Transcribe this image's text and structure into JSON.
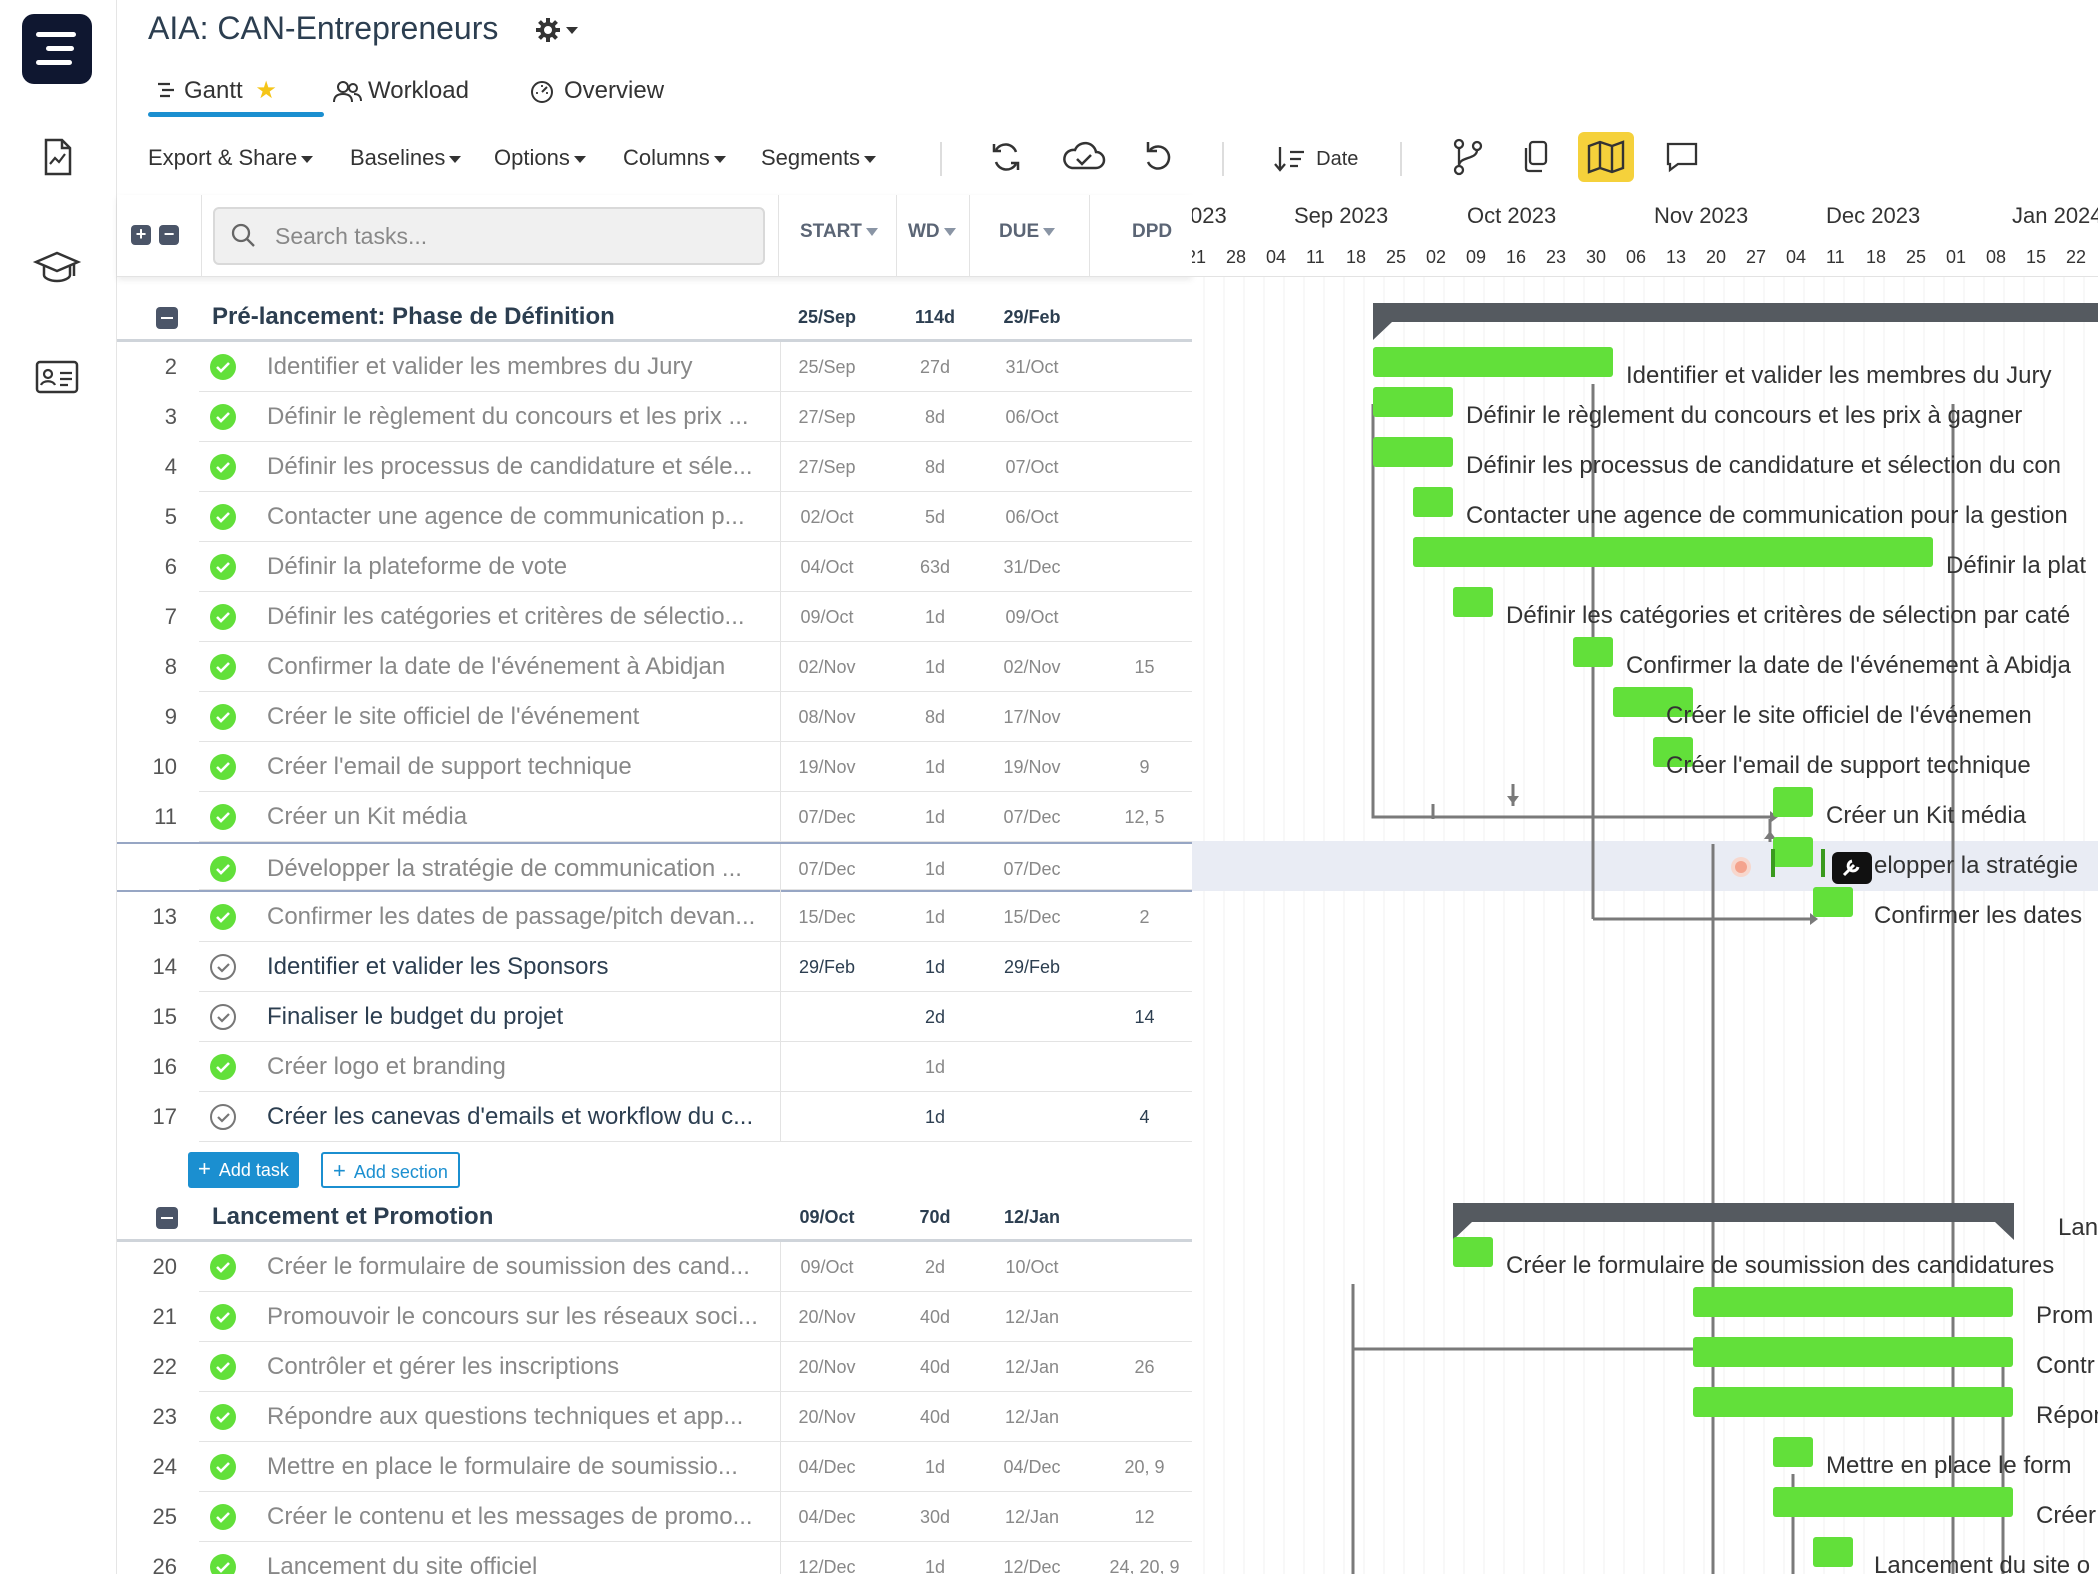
{
  "project": {
    "title": "AIA: CAN-Entrepreneurs"
  },
  "tabs": [
    {
      "label": "Gantt",
      "active": true,
      "starred": true
    },
    {
      "label": "Workload"
    },
    {
      "label": "Overview"
    }
  ],
  "toolbar": {
    "export_share": "Export & Share",
    "baselines": "Baselines",
    "options": "Options",
    "columns": "Columns",
    "segments": "Segments",
    "sort_label": "Date"
  },
  "grid": {
    "search_placeholder": "Search tasks...",
    "col_start": "START",
    "col_wd": "WD",
    "col_due": "DUE",
    "col_dpd": "DPD"
  },
  "timeline": {
    "months": [
      "023",
      "Sep 2023",
      "Oct 2023",
      "Nov 2023",
      "Dec 2023",
      "Jan 2024"
    ],
    "weeks": [
      "21",
      "28",
      "04",
      "11",
      "18",
      "25",
      "02",
      "09",
      "16",
      "23",
      "30",
      "06",
      "13",
      "20",
      "27",
      "04",
      "11",
      "18",
      "25",
      "01",
      "08",
      "15",
      "22"
    ]
  },
  "sections": [
    {
      "name": "Pré-lancement: Phase de Définition",
      "start": "25/Sep",
      "wd": "114d",
      "due": "29/Feb"
    },
    {
      "name": "Lancement et Promotion",
      "start": "09/Oct",
      "wd": "70d",
      "due": "12/Jan"
    }
  ],
  "tasks": [
    {
      "num": "2",
      "name": "Identifier et valider les membres du Jury",
      "start": "25/Sep",
      "wd": "27d",
      "due": "31/Oct",
      "dpd": "",
      "done": true
    },
    {
      "num": "3",
      "name": "Définir le règlement du concours et les prix ...",
      "start": "27/Sep",
      "wd": "8d",
      "due": "06/Oct",
      "dpd": "",
      "done": true
    },
    {
      "num": "4",
      "name": "Définir les processus de candidature et séle...",
      "start": "27/Sep",
      "wd": "8d",
      "due": "07/Oct",
      "dpd": "",
      "done": true
    },
    {
      "num": "5",
      "name": "Contacter une agence de communication p...",
      "start": "02/Oct",
      "wd": "5d",
      "due": "06/Oct",
      "dpd": "",
      "done": true
    },
    {
      "num": "6",
      "name": "Définir la plateforme de vote",
      "start": "04/Oct",
      "wd": "63d",
      "due": "31/Dec",
      "dpd": "",
      "done": true
    },
    {
      "num": "7",
      "name": "Définir les catégories et critères de sélectio...",
      "start": "09/Oct",
      "wd": "1d",
      "due": "09/Oct",
      "dpd": "",
      "done": true
    },
    {
      "num": "8",
      "name": "Confirmer la date de l'événement à Abidjan",
      "start": "02/Nov",
      "wd": "1d",
      "due": "02/Nov",
      "dpd": "15",
      "done": true
    },
    {
      "num": "9",
      "name": "Créer le site officiel de l'événement",
      "start": "08/Nov",
      "wd": "8d",
      "due": "17/Nov",
      "dpd": "",
      "done": true
    },
    {
      "num": "10",
      "name": "Créer l'email de support technique",
      "start": "19/Nov",
      "wd": "1d",
      "due": "19/Nov",
      "dpd": "9",
      "done": true
    },
    {
      "num": "11",
      "name": "Créer un Kit média",
      "start": "07/Dec",
      "wd": "1d",
      "due": "07/Dec",
      "dpd": "12, 5",
      "done": true
    },
    {
      "num": "",
      "name": "Développer la stratégie de communication ...",
      "start": "07/Dec",
      "wd": "1d",
      "due": "07/Dec",
      "dpd": "",
      "done": true,
      "selected": true
    },
    {
      "num": "13",
      "name": "Confirmer les dates de passage/pitch devan...",
      "start": "15/Dec",
      "wd": "1d",
      "due": "15/Dec",
      "dpd": "2",
      "done": true
    },
    {
      "num": "14",
      "name": "Identifier et valider les Sponsors",
      "start": "29/Feb",
      "wd": "1d",
      "due": "29/Feb",
      "dpd": "",
      "done": false
    },
    {
      "num": "15",
      "name": "Finaliser le budget du projet",
      "start": "",
      "wd": "2d",
      "due": "",
      "dpd": "14",
      "done": false
    },
    {
      "num": "16",
      "name": "Créer logo et branding",
      "start": "",
      "wd": "1d",
      "due": "",
      "dpd": "",
      "done": true
    },
    {
      "num": "17",
      "name": "Créer les canevas d'emails et workflow du c...",
      "start": "",
      "wd": "1d",
      "due": "",
      "dpd": "4",
      "done": false
    }
  ],
  "tasks2": [
    {
      "num": "20",
      "name": "Créer le formulaire de soumission des cand...",
      "start": "09/Oct",
      "wd": "2d",
      "due": "10/Oct",
      "dpd": "",
      "done": true
    },
    {
      "num": "21",
      "name": "Promouvoir le concours sur les réseaux soci...",
      "start": "20/Nov",
      "wd": "40d",
      "due": "12/Jan",
      "dpd": "",
      "done": true
    },
    {
      "num": "22",
      "name": "Contrôler et gérer les inscriptions",
      "start": "20/Nov",
      "wd": "40d",
      "due": "12/Jan",
      "dpd": "26",
      "done": true
    },
    {
      "num": "23",
      "name": "Répondre aux questions techniques et app...",
      "start": "20/Nov",
      "wd": "40d",
      "due": "12/Jan",
      "dpd": "",
      "done": true
    },
    {
      "num": "24",
      "name": "Mettre en place le formulaire de soumissio...",
      "start": "04/Dec",
      "wd": "1d",
      "due": "04/Dec",
      "dpd": "20, 9",
      "done": true
    },
    {
      "num": "25",
      "name": "Créer le contenu et les messages de promo...",
      "start": "04/Dec",
      "wd": "30d",
      "due": "12/Jan",
      "dpd": "12",
      "done": true
    },
    {
      "num": "26",
      "name": "Lancement du site officiel",
      "start": "12/Dec",
      "wd": "1d",
      "due": "12/Dec",
      "dpd": "24, 20, 9",
      "done": true
    }
  ],
  "add": {
    "task": "Add task",
    "section": "Add section"
  },
  "gantt_labels": [
    "Identifier et valider les membres du Jury",
    "Définir le règlement du concours et les prix à gagner",
    "Définir les processus de candidature et sélection du con",
    "Contacter une agence de communication pour la gestion",
    "Définir la plat",
    "Définir les catégories et critères de sélection par caté",
    "Confirmer la date de l'événement à Abidja",
    "Créer le site officiel de l'événemen",
    "Créer l'email de support technique",
    "Créer un Kit média",
    "elopper la stratégie",
    "Confirmer les dates",
    "Lance",
    "Créer le formulaire de soumission des candidatures",
    "Prom",
    "Contr",
    "Répon",
    "Mettre en place le form",
    "Créer",
    "Lancement du site o"
  ],
  "colors": {
    "bar": "#62e03a",
    "accent": "#1b8fd0",
    "summary": "#555a60",
    "highlight": "#f5d13b"
  }
}
